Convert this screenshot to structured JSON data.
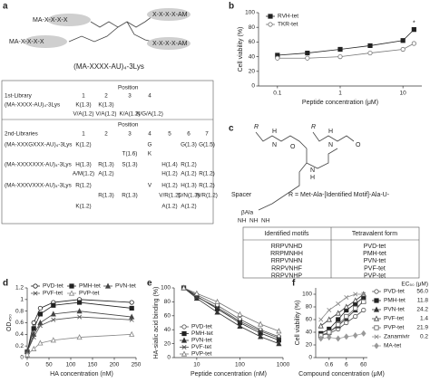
{
  "panel_a": {
    "panel": "a",
    "structure": [
      "MA-X-X-X-X",
      "X-X-X-X-AM",
      "MA-X-X-X-X",
      "X-X-X-X-AM"
    ],
    "caption": "(MA-XXXX-AU)₄-3Lys",
    "table": {
      "library1": {
        "name": "1st-Library",
        "position": "Position",
        "columns": [
          "1",
          "2",
          "3",
          "4"
        ],
        "rows": [
          [
            "(MA-XXXX-AU)₄-3Lys",
            "K(1.3)",
            "K(1.3)",
            null,
            null
          ],
          [
            null,
            "V/A(1.2)",
            "V/A(1.2)",
            "K/A(1.2)",
            "K/G/A(1.2)"
          ]
        ]
      },
      "library2": {
        "name": "2nd-Libraries",
        "position": "Position",
        "columns": [
          "1",
          "2",
          "3",
          "4",
          "5",
          "6",
          "7"
        ],
        "rows": [
          [
            "(MA-XXXGXXX-AU)₄-3Lys",
            "K(1.2)",
            null,
            null,
            "G",
            null,
            "G(1.3)",
            "G(1.5)"
          ],
          [
            null,
            null,
            null,
            "T(1.6)",
            "K",
            null,
            null,
            null
          ],
          [
            "(MA-XXXXXXX-AU)₄-3Lys",
            "H(1.3)",
            "R(1.3)",
            "S(1.3)",
            null,
            "H(1.4)",
            "R(1.2)",
            null
          ],
          [
            null,
            "A/M(1.2)",
            "A(1.2)",
            null,
            null,
            "H(1.2)",
            "A(1.2)",
            "R(1.2)"
          ],
          [
            "(MA-XXXVXXX-AU)₄-3Lys",
            "R(1.2)",
            null,
            null,
            "V",
            "H(1.2)",
            "H(1.3)",
            "R(1.2)"
          ],
          [
            null,
            null,
            "R(1.3)",
            "R(1.3)",
            null,
            "V/R(1.2)",
            "D/N(1.3)",
            "N/R(1.2)"
          ],
          [
            null,
            "K(1.2)",
            null,
            null,
            null,
            "A(1.2)",
            "A(1.2)",
            null
          ]
        ]
      }
    }
  },
  "panel_c": {
    "panel": "c",
    "atoms": [
      "R",
      "H",
      "N",
      "O",
      "R",
      "H",
      "N",
      "O",
      "N",
      "H"
    ],
    "spacer": "Spacer",
    "definition": "R = Met-Ala-[Identified Motif]-Ala-U-",
    "spacer_unit": "βAla",
    "amines": [
      "NH",
      "NH",
      "NH"
    ],
    "table": {
      "headers": [
        "Identified motifs",
        "Tetravalent form"
      ],
      "rows": [
        [
          "RRPVNHD",
          "PVD-tet"
        ],
        [
          "RRPMNHH",
          "PMH-tet"
        ],
        [
          "RRPVNHN",
          "PVN-tet"
        ],
        [
          "RRPVNHF",
          "PVF-tet"
        ],
        [
          "RRPVNHP",
          "PVP-tet"
        ]
      ]
    }
  },
  "chart_data": [
    {
      "type": "line",
      "panel": "b",
      "xlabel": "Peptide concentration (μM)",
      "ylabel": "Cell viability (%)",
      "xscale": "log",
      "xlim": [
        0.05,
        20
      ],
      "xticks": [
        0.1,
        1,
        10
      ],
      "ylim": [
        0,
        100
      ],
      "yticks": [
        0,
        20,
        40,
        60,
        80,
        100
      ],
      "legend": "upper-left",
      "x": [
        0.1,
        0.3,
        1,
        3,
        10,
        15
      ],
      "series": [
        {
          "name": "RVH-tet",
          "color": "#222222",
          "marker": "square",
          "values": [
            42,
            45,
            50,
            55,
            62,
            77
          ],
          "annotation": "*"
        },
        {
          "name": "TKR-tet",
          "color": "#777777",
          "marker": "open-circle",
          "values": [
            38,
            38,
            40,
            45,
            50,
            58
          ]
        }
      ]
    },
    {
      "type": "line",
      "panel": "d",
      "xlabel": "HA concentration (nM)",
      "ylabel": "OD₄₅₀",
      "xscale": "linear",
      "xlim": [
        0,
        250
      ],
      "xticks": [
        0,
        50,
        100,
        150,
        200,
        250
      ],
      "ylim": [
        0,
        1.2
      ],
      "yticks": [
        0,
        0.2,
        0.4,
        0.6,
        0.8,
        1,
        1.2
      ],
      "legend": "top",
      "x": [
        0,
        15,
        30,
        60,
        120,
        240
      ],
      "series": [
        {
          "name": "PVD-tet",
          "color": "#222222",
          "marker": "open-circle",
          "values": [
            0.1,
            0.6,
            0.85,
            0.95,
            1.0,
            0.95
          ]
        },
        {
          "name": "PMH-tet",
          "color": "#222222",
          "marker": "square",
          "values": [
            0.1,
            0.5,
            0.75,
            0.9,
            0.95,
            0.85
          ]
        },
        {
          "name": "PVN-tet",
          "color": "#444444",
          "marker": "triangle",
          "values": [
            0.1,
            0.4,
            0.6,
            0.75,
            0.8,
            0.7
          ]
        },
        {
          "name": "PVF-tet",
          "color": "#555555",
          "marker": "cross",
          "values": [
            0.1,
            0.35,
            0.55,
            0.65,
            0.7,
            0.65
          ]
        },
        {
          "name": "PVP-tet",
          "color": "#888888",
          "marker": "open-triangle",
          "values": [
            0.05,
            0.15,
            0.25,
            0.3,
            0.35,
            0.4
          ]
        }
      ]
    },
    {
      "type": "line",
      "panel": "e",
      "xlabel": "Peptide concentration (nM)",
      "ylabel": "HA-sialic acid binding (%)",
      "xscale": "log",
      "xlim": [
        3,
        1000
      ],
      "xticks": [
        10,
        100,
        1000
      ],
      "ylim": [
        0,
        100
      ],
      "yticks": [
        0,
        20,
        40,
        60,
        80,
        100
      ],
      "legend": "lower-left",
      "x": [
        5,
        10,
        30,
        100,
        300,
        800
      ],
      "series": [
        {
          "name": "PVD-tet",
          "color": "#555555",
          "marker": "open-circle",
          "values": [
            100,
            90,
            75,
            55,
            40,
            30
          ]
        },
        {
          "name": "PMH-tet",
          "color": "#222222",
          "marker": "square",
          "values": [
            100,
            88,
            70,
            50,
            35,
            25
          ]
        },
        {
          "name": "PVN-tet",
          "color": "#333333",
          "marker": "triangle",
          "values": [
            100,
            85,
            65,
            45,
            30,
            20
          ]
        },
        {
          "name": "PVF-tet",
          "color": "#444444",
          "marker": "cross",
          "values": [
            100,
            87,
            72,
            52,
            38,
            28
          ]
        },
        {
          "name": "PVP-tet",
          "color": "#777777",
          "marker": "open-triangle",
          "values": [
            100,
            92,
            80,
            62,
            48,
            38
          ]
        }
      ]
    },
    {
      "type": "line",
      "panel": "f",
      "xlabel": "Compound concentration (μM)",
      "ylabel": "Cell viability (%)",
      "xscale": "log",
      "xlim": [
        0.1,
        100
      ],
      "xticks": [
        0.6,
        6,
        60
      ],
      "ylim": [
        0,
        110
      ],
      "yticks": [
        0,
        20,
        40,
        60,
        80,
        100
      ],
      "legend": "right",
      "legend_title": "EC₅₀ (μM)",
      "x": [
        0.2,
        0.6,
        2,
        6,
        20,
        60
      ],
      "series": [
        {
          "name": "PVD-tet",
          "color": "#555555",
          "marker": "open-circle",
          "ec50": "56.0",
          "values": [
            35,
            38,
            45,
            55,
            65,
            75
          ]
        },
        {
          "name": "PMH-tet",
          "color": "#222222",
          "marker": "square",
          "ec50": "11.8",
          "values": [
            38,
            45,
            60,
            75,
            85,
            95
          ]
        },
        {
          "name": "PVN-tet",
          "color": "#333333",
          "marker": "triangle",
          "ec50": "24.2",
          "values": [
            35,
            40,
            50,
            62,
            75,
            90
          ]
        },
        {
          "name": "PVF-tet",
          "color": "#444444",
          "marker": "open-triangle",
          "ec50": "1.4",
          "values": [
            50,
            60,
            70,
            80,
            90,
            100
          ]
        },
        {
          "name": "PVP-tet",
          "color": "#666666",
          "marker": "open-square",
          "ec50": "21.9",
          "values": [
            35,
            40,
            52,
            65,
            78,
            88
          ]
        },
        {
          "name": "Zanamivir",
          "color": "#888888",
          "marker": "cross",
          "ec50": "0.2",
          "values": [
            60,
            75,
            85,
            95,
            100,
            100
          ]
        },
        {
          "name": "MA-tet",
          "color": "#999999",
          "marker": "diamond",
          "values": [
            30,
            32,
            30,
            33,
            35,
            38
          ]
        }
      ]
    }
  ]
}
